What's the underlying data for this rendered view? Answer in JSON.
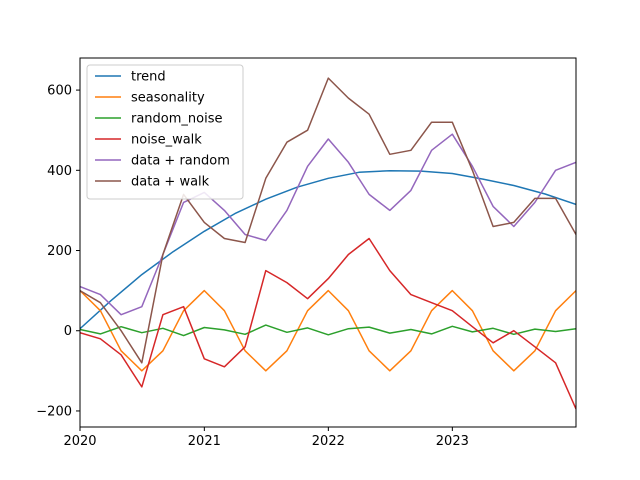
{
  "chart_data": {
    "type": "line",
    "title": "",
    "xlabel": "",
    "ylabel": "",
    "x_range": [
      "2020-01-01",
      "2023-12-31"
    ],
    "ylim": [
      -240,
      680
    ],
    "x_ticks": [
      "2020-01-01",
      "2021-01-01",
      "2022-01-01",
      "2023-01-01"
    ],
    "x_tick_labels": [
      "2020",
      "2021",
      "2022",
      "2023"
    ],
    "y_ticks": [
      -200,
      0,
      200,
      400,
      600
    ],
    "y_tick_labels": [
      "−200",
      "0",
      "200",
      "400",
      "600"
    ],
    "grid": false,
    "legend_position": "upper-left",
    "series": [
      {
        "name": "trend",
        "color": "#1f77b4",
        "x": [
          "2020-01-01",
          "2020-04-01",
          "2020-07-01",
          "2020-10-01",
          "2021-01-01",
          "2021-04-01",
          "2021-07-01",
          "2021-10-01",
          "2022-01-01",
          "2022-04-01",
          "2022-07-01",
          "2022-10-01",
          "2023-01-01",
          "2023-04-01",
          "2023-07-01",
          "2023-10-01",
          "2023-12-31"
        ],
        "y": [
          5,
          75,
          140,
          197,
          248,
          292,
          328,
          358,
          380,
          395,
          399,
          398,
          392,
          378,
          362,
          341,
          315
        ]
      },
      {
        "name": "seasonality",
        "color": "#ff7f0e",
        "x": [
          "2020-01-01",
          "2020-03-01",
          "2020-05-01",
          "2020-07-01",
          "2020-09-01",
          "2020-11-01",
          "2021-01-01",
          "2021-03-01",
          "2021-05-01",
          "2021-07-01",
          "2021-09-01",
          "2021-11-01",
          "2022-01-01",
          "2022-03-01",
          "2022-05-01",
          "2022-07-01",
          "2022-09-01",
          "2022-11-01",
          "2023-01-01",
          "2023-03-01",
          "2023-05-01",
          "2023-07-01",
          "2023-09-01",
          "2023-11-01",
          "2023-12-31"
        ],
        "y": [
          100,
          50,
          -50,
          -100,
          -50,
          50,
          100,
          50,
          -50,
          -100,
          -50,
          50,
          100,
          50,
          -50,
          -100,
          -50,
          50,
          100,
          50,
          -50,
          -100,
          -50,
          50,
          100
        ]
      },
      {
        "name": "random_noise",
        "color": "#2ca02c",
        "x": [
          "2020-01-01",
          "2020-03-01",
          "2020-05-01",
          "2020-07-01",
          "2020-09-01",
          "2020-11-01",
          "2021-01-01",
          "2021-03-01",
          "2021-05-01",
          "2021-07-01",
          "2021-09-01",
          "2021-11-01",
          "2022-01-01",
          "2022-03-01",
          "2022-05-01",
          "2022-07-01",
          "2022-09-01",
          "2022-11-01",
          "2023-01-01",
          "2023-03-01",
          "2023-05-01",
          "2023-07-01",
          "2023-09-01",
          "2023-11-01",
          "2023-12-31"
        ],
        "y": [
          3,
          -8,
          10,
          -5,
          6,
          -12,
          8,
          2,
          -9,
          14,
          -4,
          7,
          -10,
          5,
          9,
          -6,
          3,
          -8,
          11,
          -3,
          6,
          -9,
          4,
          -2,
          5
        ]
      },
      {
        "name": "noise_walk",
        "color": "#d62728",
        "x": [
          "2020-01-01",
          "2020-03-01",
          "2020-05-01",
          "2020-07-01",
          "2020-09-01",
          "2020-11-01",
          "2021-01-01",
          "2021-03-01",
          "2021-05-01",
          "2021-07-01",
          "2021-09-01",
          "2021-11-01",
          "2022-01-01",
          "2022-03-01",
          "2022-05-01",
          "2022-07-01",
          "2022-09-01",
          "2022-11-01",
          "2023-01-01",
          "2023-03-01",
          "2023-05-01",
          "2023-07-01",
          "2023-09-01",
          "2023-11-01",
          "2023-12-31"
        ],
        "y": [
          -5,
          -20,
          -60,
          -140,
          40,
          60,
          -70,
          -90,
          -40,
          150,
          120,
          80,
          130,
          190,
          230,
          150,
          90,
          70,
          50,
          10,
          -30,
          0,
          -40,
          -80,
          -195
        ]
      },
      {
        "name": "data + random",
        "color": "#9467bd",
        "x": [
          "2020-01-01",
          "2020-03-01",
          "2020-05-01",
          "2020-07-01",
          "2020-09-01",
          "2020-11-01",
          "2021-01-01",
          "2021-03-01",
          "2021-05-01",
          "2021-07-01",
          "2021-09-01",
          "2021-11-01",
          "2022-01-01",
          "2022-03-01",
          "2022-05-01",
          "2022-07-01",
          "2022-09-01",
          "2022-11-01",
          "2023-01-01",
          "2023-03-01",
          "2023-05-01",
          "2023-07-01",
          "2023-09-01",
          "2023-11-01",
          "2023-12-31"
        ],
        "y": [
          110,
          90,
          40,
          60,
          190,
          320,
          345,
          300,
          240,
          225,
          300,
          410,
          478,
          420,
          340,
          300,
          350,
          450,
          490,
          410,
          310,
          260,
          320,
          400,
          420
        ]
      },
      {
        "name": "data + walk",
        "color": "#8c564b",
        "x": [
          "2020-01-01",
          "2020-03-01",
          "2020-05-01",
          "2020-07-01",
          "2020-09-01",
          "2020-11-01",
          "2021-01-01",
          "2021-03-01",
          "2021-05-01",
          "2021-07-01",
          "2021-09-01",
          "2021-11-01",
          "2022-01-01",
          "2022-03-01",
          "2022-05-01",
          "2022-07-01",
          "2022-09-01",
          "2022-11-01",
          "2023-01-01",
          "2023-03-01",
          "2023-05-01",
          "2023-07-01",
          "2023-09-01",
          "2023-11-01",
          "2023-12-31"
        ],
        "y": [
          100,
          70,
          0,
          -80,
          190,
          340,
          270,
          230,
          220,
          380,
          470,
          500,
          630,
          580,
          540,
          440,
          450,
          520,
          520,
          400,
          260,
          270,
          330,
          330,
          240
        ]
      }
    ]
  }
}
